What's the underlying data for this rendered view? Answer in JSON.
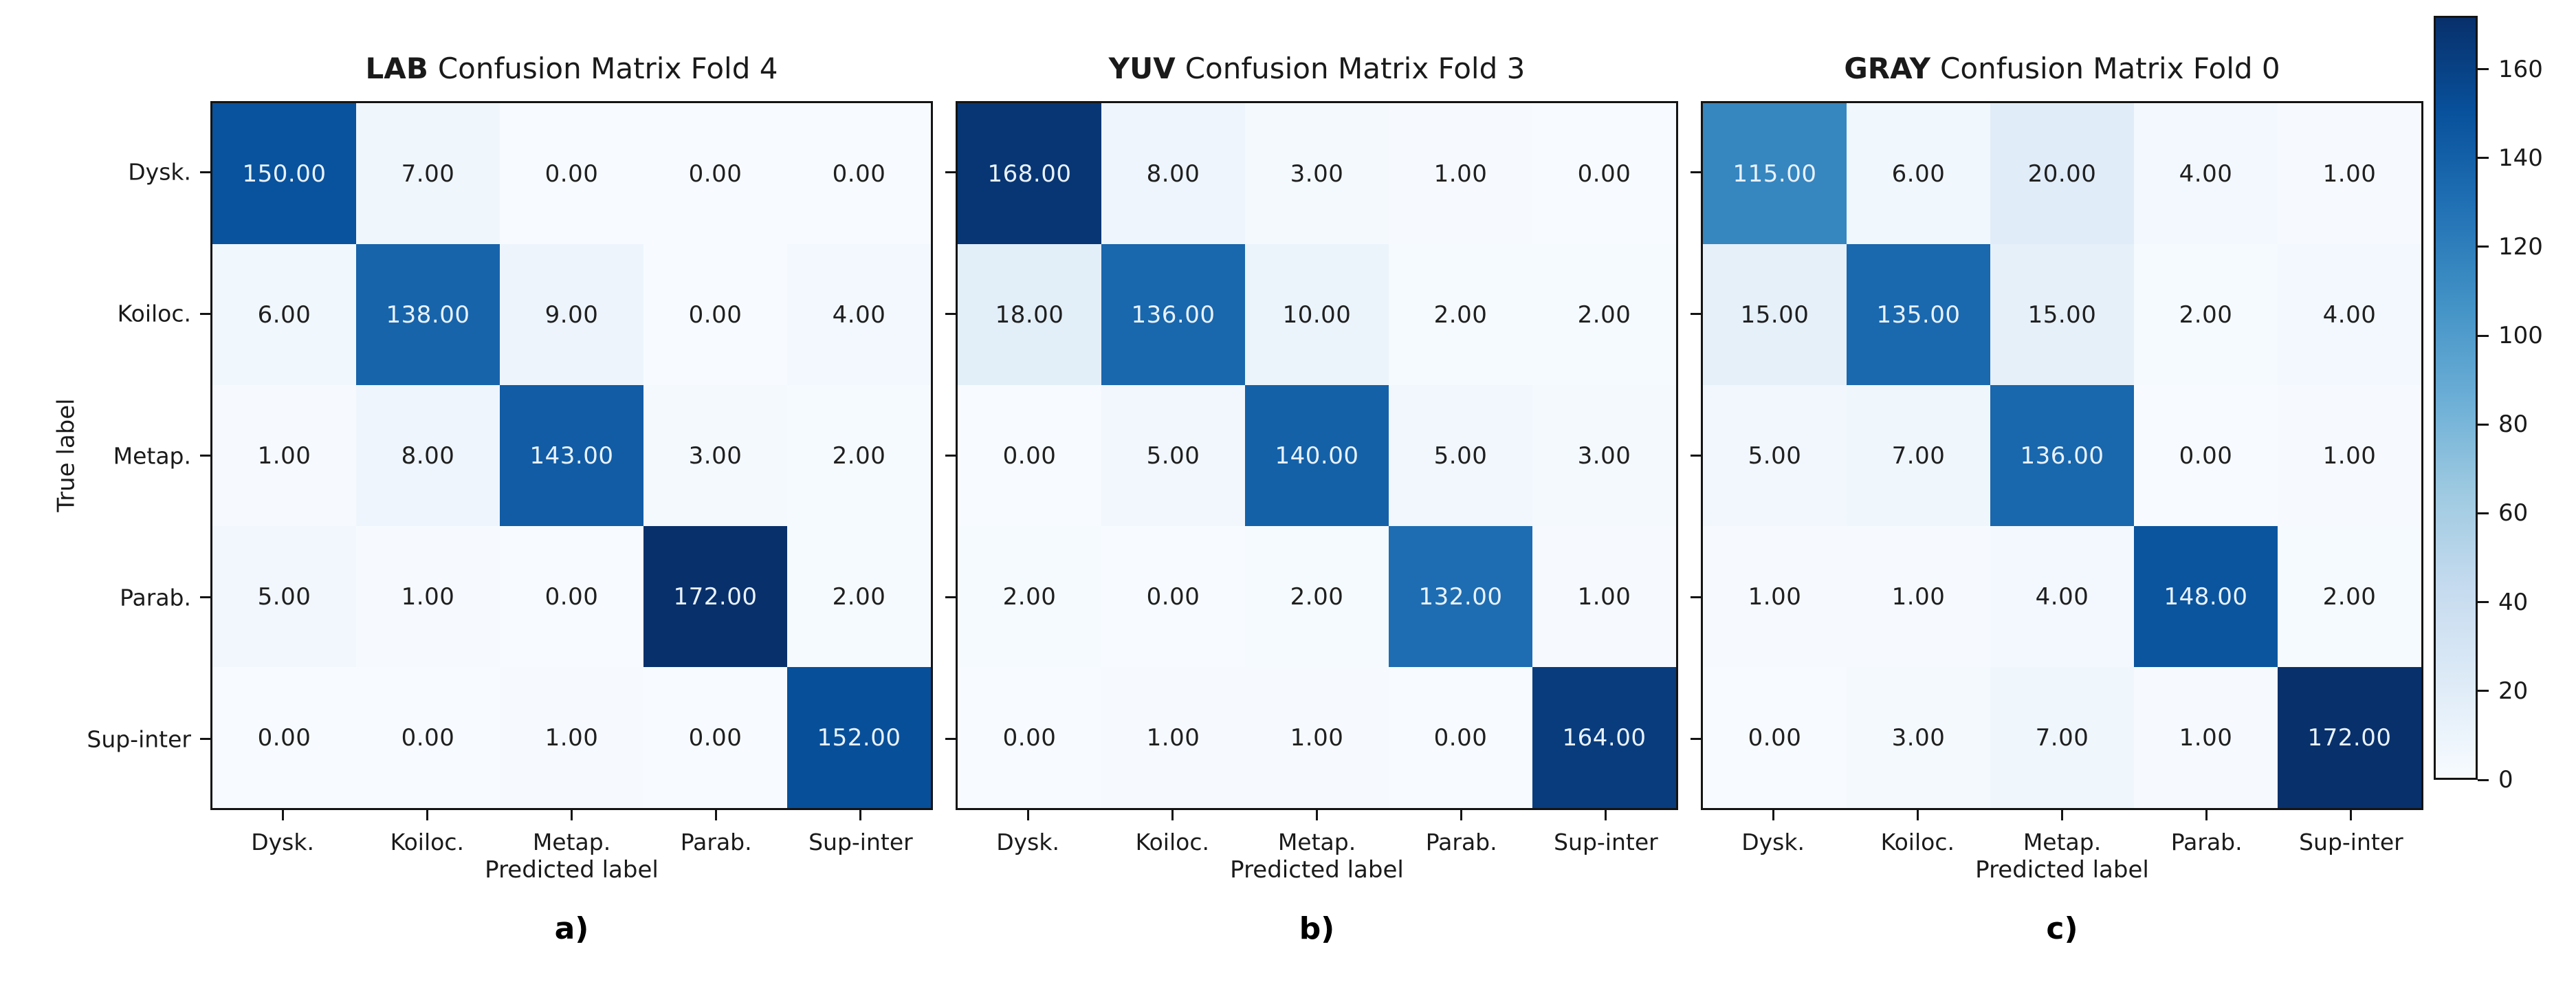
{
  "figure": {
    "y_axis_label": "True label",
    "x_axis_label": "Predicted label",
    "row_labels": [
      "Dysk.",
      "Koiloc.",
      "Metap.",
      "Parab.",
      "Sup-inter"
    ],
    "col_labels": [
      "Dysk.",
      "Koiloc.",
      "Metap.",
      "Parab.",
      "Sup-inter"
    ],
    "colormap": {
      "name": "Blues",
      "anchors": [
        "#f7fbff",
        "#deebf7",
        "#c6dbef",
        "#9ecae1",
        "#6baed6",
        "#4292c6",
        "#2171b5",
        "#08519c",
        "#08306b"
      ]
    },
    "colors": {
      "cell_text_dark": "#1f1f1f",
      "cell_text_light": "#e9f2fb",
      "spine": "#141414"
    },
    "colorbar": {
      "vmin": 0,
      "vmax": 172,
      "ticks": [
        0,
        20,
        40,
        60,
        80,
        100,
        120,
        140,
        160
      ]
    },
    "value_decimals": 2
  },
  "chart_data": [
    {
      "type": "heatmap",
      "title_bold": "LAB",
      "title_rest": "Confusion Matrix Fold 4",
      "caption": "a)",
      "row_labels": [
        "Dysk.",
        "Koiloc.",
        "Metap.",
        "Parab.",
        "Sup-inter"
      ],
      "col_labels": [
        "Dysk.",
        "Koiloc.",
        "Metap.",
        "Parab.",
        "Sup-inter"
      ],
      "xlabel": "Predicted label",
      "ylabel": "True label",
      "vmin": 0,
      "vmax": 172,
      "values": [
        [
          150,
          7,
          0,
          0,
          0
        ],
        [
          6,
          138,
          9,
          0,
          4
        ],
        [
          1,
          8,
          143,
          3,
          2
        ],
        [
          5,
          1,
          0,
          172,
          2
        ],
        [
          0,
          0,
          1,
          0,
          152
        ]
      ]
    },
    {
      "type": "heatmap",
      "title_bold": "YUV",
      "title_rest": "Confusion Matrix Fold 3",
      "caption": "b)",
      "row_labels": [
        "Dysk.",
        "Koiloc.",
        "Metap.",
        "Parab.",
        "Sup-inter"
      ],
      "col_labels": [
        "Dysk.",
        "Koiloc.",
        "Metap.",
        "Parab.",
        "Sup-inter"
      ],
      "xlabel": "Predicted label",
      "ylabel": "",
      "vmin": 0,
      "vmax": 172,
      "values": [
        [
          168,
          8,
          3,
          1,
          0
        ],
        [
          18,
          136,
          10,
          2,
          2
        ],
        [
          0,
          5,
          140,
          5,
          3
        ],
        [
          2,
          0,
          2,
          132,
          1
        ],
        [
          0,
          1,
          1,
          0,
          164
        ]
      ]
    },
    {
      "type": "heatmap",
      "title_bold": "GRAY",
      "title_rest": "Confusion Matrix Fold 0",
      "caption": "c)",
      "row_labels": [
        "Dysk.",
        "Koiloc.",
        "Metap.",
        "Parab.",
        "Sup-inter"
      ],
      "col_labels": [
        "Dysk.",
        "Koiloc.",
        "Metap.",
        "Parab.",
        "Sup-inter"
      ],
      "xlabel": "Predicted label",
      "ylabel": "",
      "vmin": 0,
      "vmax": 172,
      "values": [
        [
          115,
          6,
          20,
          4,
          1
        ],
        [
          15,
          135,
          15,
          2,
          4
        ],
        [
          5,
          7,
          136,
          0,
          1
        ],
        [
          1,
          1,
          4,
          148,
          2
        ],
        [
          0,
          3,
          7,
          1,
          172
        ]
      ]
    }
  ]
}
